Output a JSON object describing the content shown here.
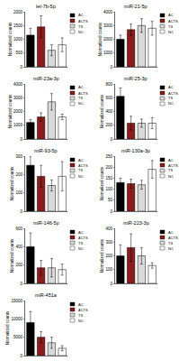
{
  "chart_data": [
    {
      "type": "bar",
      "title": "let-7b-5p",
      "y_label": "Normalized counts",
      "categories": [
        "AC",
        "ACTS",
        "TS",
        "NC"
      ],
      "values": [
        1150,
        1450,
        600,
        800
      ],
      "errors": [
        250,
        400,
        200,
        250
      ],
      "colors": [
        "#000000",
        "#8b1c1c",
        "#d9d9d9",
        "#ffffff"
      ],
      "ylim": [
        0,
        2000
      ],
      "yticks": [
        0,
        500,
        1000,
        1500,
        2000
      ],
      "grid": false,
      "legend": "right",
      "tick_labels": "y"
    },
    {
      "type": "bar",
      "title": "miR-21-5p",
      "y_label": "Normalized counts",
      "categories": [
        "AC",
        "ACTS",
        "TS",
        "NC"
      ],
      "values": [
        2000,
        2700,
        3000,
        2800
      ],
      "errors": [
        300,
        400,
        500,
        500
      ],
      "colors": [
        "#000000",
        "#8b1c1c",
        "#d9d9d9",
        "#ffffff"
      ],
      "ylim": [
        0,
        4000
      ],
      "yticks": [
        0,
        1000,
        2000,
        3000,
        4000
      ],
      "grid": false,
      "legend": "right",
      "tick_labels": "y"
    },
    {
      "type": "bar",
      "title": "miR-23a-3p",
      "y_label": "Normalized counts",
      "categories": [
        "AC",
        "ACTS",
        "TS",
        "NC"
      ],
      "values": [
        1200,
        1600,
        2700,
        1600
      ],
      "errors": [
        200,
        300,
        600,
        200
      ],
      "colors": [
        "#000000",
        "#8b1c1c",
        "#d9d9d9",
        "#ffffff"
      ],
      "ylim": [
        0,
        4000
      ],
      "yticks": [
        0,
        1000,
        2000,
        3000,
        4000
      ],
      "grid": false,
      "legend": "right",
      "tick_labels": "y"
    },
    {
      "type": "bar",
      "title": "miR-25-3p",
      "y_label": "Normalized counts",
      "categories": [
        "AC",
        "ACTS",
        "TS",
        "NC"
      ],
      "values": [
        620,
        230,
        230,
        230
      ],
      "errors": [
        120,
        100,
        60,
        80
      ],
      "colors": [
        "#000000",
        "#8b1c1c",
        "#d9d9d9",
        "#ffffff"
      ],
      "ylim": [
        0,
        800
      ],
      "yticks": [
        0,
        200,
        400,
        600,
        800
      ],
      "grid": false,
      "legend": "right",
      "tick_labels": "y"
    },
    {
      "type": "bar",
      "title": "miR-93-5p",
      "y_label": "Normalized counts",
      "categories": [
        "AC",
        "ACTS",
        "TS",
        "NC"
      ],
      "values": [
        250,
        190,
        140,
        190
      ],
      "errors": [
        50,
        60,
        30,
        80
      ],
      "colors": [
        "#000000",
        "#8b1c1c",
        "#d9d9d9",
        "#ffffff"
      ],
      "ylim": [
        0,
        300
      ],
      "yticks": [
        0,
        100,
        200,
        300
      ],
      "grid": false,
      "legend": "right",
      "tick_labels": "y"
    },
    {
      "type": "bar",
      "title": "miR-130a-3p",
      "y_label": "Normalized counts",
      "categories": [
        "AC",
        "ACTS",
        "TS",
        "NC"
      ],
      "values": [
        130,
        125,
        120,
        190
      ],
      "errors": [
        20,
        20,
        20,
        40
      ],
      "colors": [
        "#000000",
        "#8b1c1c",
        "#d9d9d9",
        "#ffffff"
      ],
      "ylim": [
        0,
        250
      ],
      "yticks": [
        0,
        50,
        100,
        150,
        200,
        250
      ],
      "grid": false,
      "legend": "right",
      "tick_labels": "y"
    },
    {
      "type": "bar",
      "title": "miR-146-5p",
      "y_label": "Normalized counts",
      "categories": [
        "AC",
        "ACTS",
        "TS",
        "NC"
      ],
      "values": [
        400,
        170,
        170,
        150
      ],
      "errors": [
        150,
        80,
        100,
        60
      ],
      "colors": [
        "#000000",
        "#8b1c1c",
        "#d9d9d9",
        "#ffffff"
      ],
      "ylim": [
        0,
        600
      ],
      "yticks": [
        0,
        200,
        400,
        600
      ],
      "grid": false,
      "legend": "right",
      "tick_labels": "y"
    },
    {
      "type": "bar",
      "title": "miR-223-3p",
      "y_label": "Normalized counts",
      "categories": [
        "AC",
        "ACTS",
        "TS",
        "NC"
      ],
      "values": [
        200,
        260,
        200,
        130
      ],
      "errors": [
        80,
        100,
        60,
        20
      ],
      "colors": [
        "#000000",
        "#8b1c1c",
        "#d9d9d9",
        "#ffffff"
      ],
      "ylim": [
        0,
        400
      ],
      "yticks": [
        0,
        100,
        200,
        300,
        400
      ],
      "grid": false,
      "legend": "right",
      "tick_labels": "y"
    },
    {
      "type": "bar",
      "title": "miR-451a",
      "y_label": "Normalized counts",
      "categories": [
        "AC",
        "ACTS",
        "TS",
        "NC"
      ],
      "values": [
        9000,
        5000,
        3500,
        2000
      ],
      "errors": [
        3000,
        1500,
        1500,
        700
      ],
      "colors": [
        "#000000",
        "#8b1c1c",
        "#d9d9d9",
        "#ffffff"
      ],
      "ylim": [
        0,
        15000
      ],
      "yticks": [
        0,
        5000,
        10000,
        15000
      ],
      "grid": false,
      "legend": "right",
      "tick_labels": "y"
    }
  ]
}
